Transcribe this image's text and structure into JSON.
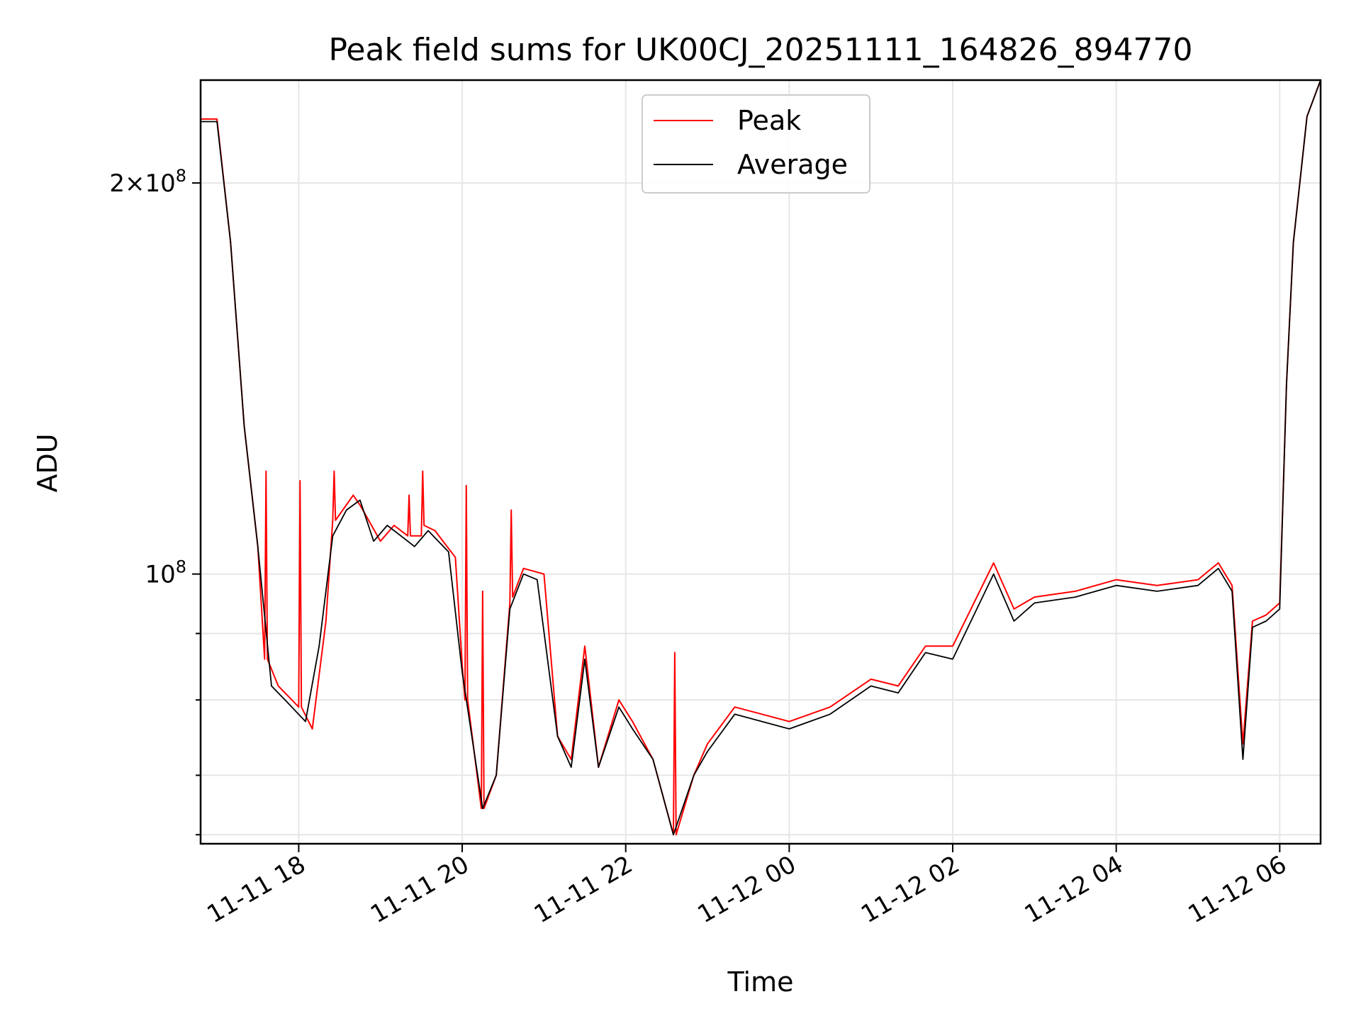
{
  "chart_data": {
    "type": "line",
    "title": "Peak field sums for UK00CJ_20251111_164826_894770",
    "xlabel": "Time",
    "ylabel": "ADU",
    "y_scale": "log",
    "ylim": [
      62000000,
      240000000
    ],
    "xlim": [
      "2025-11-11 16:48",
      "2025-11-12 06:30"
    ],
    "x_ticks": [
      "2025-11-11 18:00",
      "2025-11-11 20:00",
      "2025-11-11 22:00",
      "2025-11-12 00:00",
      "2025-11-12 02:00",
      "2025-11-12 04:00",
      "2025-11-12 06:00"
    ],
    "x_tick_labels": [
      "11-11 18",
      "11-11 20",
      "11-11 22",
      "11-12 00",
      "11-12 02",
      "11-12 04",
      "11-12 06"
    ],
    "y_ticks": [
      100000000,
      200000000
    ],
    "y_tick_labels": [
      {
        "mant": "",
        "exp": "8"
      },
      {
        "mant": "2",
        "exp": "8"
      }
    ],
    "y_minor_ticks": [
      63000000,
      70000000,
      80000000,
      90000000
    ],
    "grid": true,
    "legend": {
      "placement": "top-center"
    },
    "series": [
      {
        "name": "Peak",
        "color": "#ff0000",
        "x": [
          "2025-11-11 16:48",
          "2025-11-11 17:00",
          "2025-11-11 17:10",
          "2025-11-11 17:20",
          "2025-11-11 17:30",
          "2025-11-11 17:35",
          "2025-11-11 17:36",
          "2025-11-11 17:37",
          "2025-11-11 17:45",
          "2025-11-11 17:55",
          "2025-11-11 18:00",
          "2025-11-11 18:01",
          "2025-11-11 18:02",
          "2025-11-11 18:10",
          "2025-11-11 18:20",
          "2025-11-11 18:25",
          "2025-11-11 18:26",
          "2025-11-11 18:27",
          "2025-11-11 18:40",
          "2025-11-11 18:45",
          "2025-11-11 19:00",
          "2025-11-11 19:10",
          "2025-11-11 19:20",
          "2025-11-11 19:21",
          "2025-11-11 19:22",
          "2025-11-11 19:30",
          "2025-11-11 19:31",
          "2025-11-11 19:32",
          "2025-11-11 19:40",
          "2025-11-11 19:55",
          "2025-11-11 20:00",
          "2025-11-11 20:02",
          "2025-11-11 20:03",
          "2025-11-11 20:04",
          "2025-11-11 20:14",
          "2025-11-11 20:15",
          "2025-11-11 20:16",
          "2025-11-11 20:25",
          "2025-11-11 20:35",
          "2025-11-11 20:36",
          "2025-11-11 20:37",
          "2025-11-11 20:45",
          "2025-11-11 21:00",
          "2025-11-11 21:10",
          "2025-11-11 21:20",
          "2025-11-11 21:30",
          "2025-11-11 21:40",
          "2025-11-11 21:55",
          "2025-11-11 22:05",
          "2025-11-11 22:20",
          "2025-11-11 22:35",
          "2025-11-11 22:36",
          "2025-11-11 22:37",
          "2025-11-11 22:50",
          "2025-11-11 23:00",
          "2025-11-11 23:20",
          "2025-11-11 23:40",
          "2025-11-12 00:00",
          "2025-11-12 00:30",
          "2025-11-12 01:00",
          "2025-11-12 01:20",
          "2025-11-12 01:40",
          "2025-11-12 02:00",
          "2025-11-12 02:30",
          "2025-11-12 02:45",
          "2025-11-12 03:00",
          "2025-11-12 03:30",
          "2025-11-12 04:00",
          "2025-11-12 04:30",
          "2025-11-12 05:00",
          "2025-11-12 05:15",
          "2025-11-12 05:25",
          "2025-11-12 05:33",
          "2025-11-12 05:40",
          "2025-11-12 05:50",
          "2025-11-12 06:00",
          "2025-11-12 06:05",
          "2025-11-12 06:10",
          "2025-11-12 06:20",
          "2025-11-12 06:30"
        ],
        "y": [
          224000000,
          224000000,
          180000000,
          130000000,
          105000000,
          86000000,
          120000000,
          86000000,
          82000000,
          80000000,
          79000000,
          118000000,
          79000000,
          76000000,
          92000000,
          110000000,
          120000000,
          110000000,
          115000000,
          113000000,
          106000000,
          109000000,
          107000000,
          115000000,
          107000000,
          107000000,
          120000000,
          109000000,
          108000000,
          103000000,
          85000000,
          80000000,
          117000000,
          80000000,
          66000000,
          97000000,
          66000000,
          70000000,
          95000000,
          112000000,
          96000000,
          101000000,
          100000000,
          75000000,
          72000000,
          88000000,
          71000000,
          80000000,
          77000000,
          72000000,
          63000000,
          87000000,
          63000000,
          70000000,
          74000000,
          79000000,
          78000000,
          77000000,
          79000000,
          83000000,
          82000000,
          88000000,
          88000000,
          102000000,
          94000000,
          96000000,
          97000000,
          99000000,
          98000000,
          99000000,
          102000000,
          98000000,
          74000000,
          92000000,
          93000000,
          95000000,
          140000000,
          180000000,
          225000000,
          240000000
        ]
      },
      {
        "name": "Average",
        "color": "#000000",
        "x": [
          "2025-11-11 16:48",
          "2025-11-11 17:00",
          "2025-11-11 17:10",
          "2025-11-11 17:20",
          "2025-11-11 17:30",
          "2025-11-11 17:40",
          "2025-11-11 17:50",
          "2025-11-11 18:05",
          "2025-11-11 18:15",
          "2025-11-11 18:25",
          "2025-11-11 18:35",
          "2025-11-11 18:45",
          "2025-11-11 18:55",
          "2025-11-11 19:05",
          "2025-11-11 19:15",
          "2025-11-11 19:25",
          "2025-11-11 19:35",
          "2025-11-11 19:50",
          "2025-11-11 20:00",
          "2025-11-11 20:15",
          "2025-11-11 20:25",
          "2025-11-11 20:35",
          "2025-11-11 20:45",
          "2025-11-11 20:55",
          "2025-11-11 21:10",
          "2025-11-11 21:20",
          "2025-11-11 21:30",
          "2025-11-11 21:40",
          "2025-11-11 21:55",
          "2025-11-11 22:05",
          "2025-11-11 22:20",
          "2025-11-11 22:35",
          "2025-11-11 22:50",
          "2025-11-11 23:00",
          "2025-11-11 23:20",
          "2025-11-11 23:40",
          "2025-11-12 00:00",
          "2025-11-12 00:30",
          "2025-11-12 01:00",
          "2025-11-12 01:20",
          "2025-11-12 01:40",
          "2025-11-12 02:00",
          "2025-11-12 02:30",
          "2025-11-12 02:45",
          "2025-11-12 03:00",
          "2025-11-12 03:30",
          "2025-11-12 04:00",
          "2025-11-12 04:30",
          "2025-11-12 05:00",
          "2025-11-12 05:15",
          "2025-11-12 05:25",
          "2025-11-12 05:33",
          "2025-11-12 05:40",
          "2025-11-12 05:50",
          "2025-11-12 06:00",
          "2025-11-12 06:05",
          "2025-11-12 06:10",
          "2025-11-12 06:20",
          "2025-11-12 06:30"
        ],
        "y": [
          223000000,
          223000000,
          180000000,
          130000000,
          105000000,
          82000000,
          80000000,
          77000000,
          88000000,
          107000000,
          112000000,
          114000000,
          106000000,
          109000000,
          107000000,
          105000000,
          108000000,
          104000000,
          84000000,
          66000000,
          70000000,
          94000000,
          100000000,
          99000000,
          75000000,
          71000000,
          86000000,
          71000000,
          79000000,
          76000000,
          72000000,
          63000000,
          70000000,
          73000000,
          78000000,
          77000000,
          76000000,
          78000000,
          82000000,
          81000000,
          87000000,
          86000000,
          100000000,
          92000000,
          95000000,
          96000000,
          98000000,
          97000000,
          98000000,
          101000000,
          97000000,
          72000000,
          91000000,
          92000000,
          94000000,
          140000000,
          180000000,
          225000000,
          240000000
        ]
      }
    ]
  }
}
